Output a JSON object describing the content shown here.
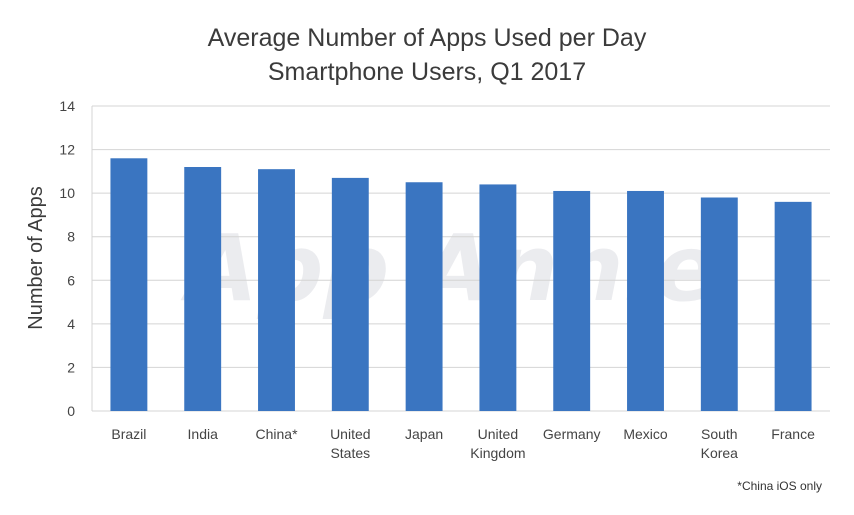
{
  "chart_data": {
    "type": "bar",
    "title": "Average Number of Apps Used per Day",
    "subtitle": "Smartphone Users, Q1 2017",
    "xlabel": "",
    "ylabel": "Number of Apps",
    "ylim": [
      0,
      14
    ],
    "yticks": [
      0,
      2,
      4,
      6,
      8,
      10,
      12,
      14
    ],
    "grid": true,
    "categories": [
      [
        "Brazil"
      ],
      [
        "India"
      ],
      [
        "China*"
      ],
      [
        "United",
        "States"
      ],
      [
        "Japan"
      ],
      [
        "United",
        "Kingdom"
      ],
      [
        "Germany"
      ],
      [
        "Mexico"
      ],
      [
        "South",
        "Korea"
      ],
      [
        "France"
      ]
    ],
    "values": [
      11.6,
      11.2,
      11.1,
      10.7,
      10.5,
      10.4,
      10.1,
      10.1,
      9.8,
      9.6
    ],
    "bar_color": "#3a75c1",
    "grid_color": "#d4d4d4",
    "footnote": "*China iOS only",
    "watermark": "App Annie"
  }
}
